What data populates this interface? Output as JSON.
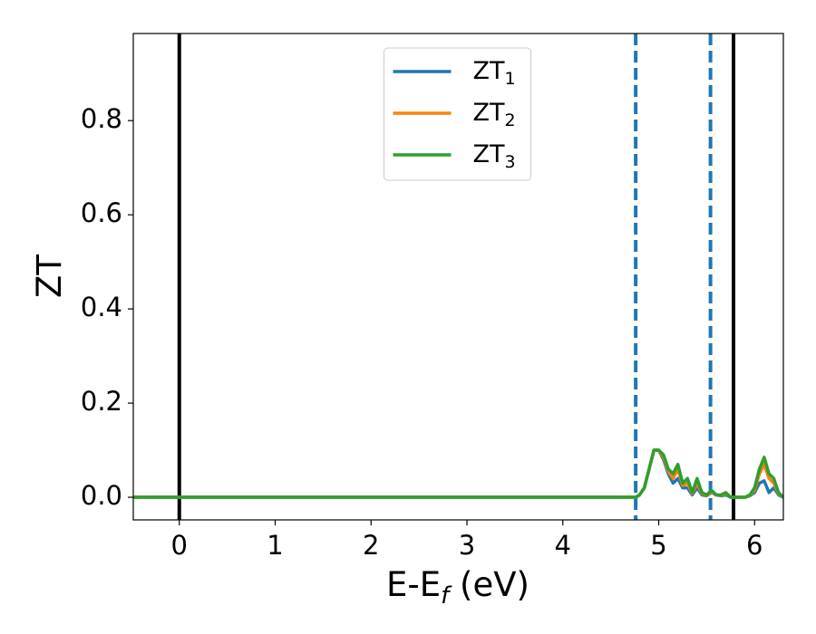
{
  "chart_data": {
    "type": "line",
    "xlabel": "E-E",
    "xlabel_sub": "f",
    "xlabel_suffix": " (eV)",
    "ylabel": "ZT",
    "xlim": [
      -0.48,
      6.3
    ],
    "ylim": [
      -0.048,
      0.985
    ],
    "xticks": [
      0,
      1,
      2,
      3,
      4,
      5,
      6
    ],
    "yticks": [
      {
        "value": 0,
        "label": "0.0"
      },
      0.2,
      0.4,
      0.6,
      0.8
    ],
    "legend": "upper center",
    "vlines": [
      {
        "x": 0,
        "color": "#000000",
        "style": "solid"
      },
      {
        "x": 5.78,
        "color": "#000000",
        "style": "solid"
      },
      {
        "x": 4.76,
        "color": "#1f77b4",
        "style": "dashed"
      },
      {
        "x": 5.54,
        "color": "#1f77b4",
        "style": "dashed"
      }
    ],
    "x": [
      -0.48,
      4.7,
      4.76,
      4.8,
      4.85,
      4.9,
      4.95,
      5.0,
      5.05,
      5.1,
      5.15,
      5.2,
      5.25,
      5.3,
      5.35,
      5.4,
      5.45,
      5.5,
      5.55,
      5.6,
      5.65,
      5.7,
      5.75,
      5.8,
      5.85,
      5.9,
      5.95,
      6.0,
      6.05,
      6.1,
      6.15,
      6.2,
      6.25,
      6.3
    ],
    "series": [
      {
        "name": "ZT",
        "sub": "1",
        "color": "#1f77b4",
        "values": [
          0,
          0,
          0,
          0.005,
          0.02,
          0.06,
          0.1,
          0.1,
          0.08,
          0.05,
          0.03,
          0.04,
          0.02,
          0.02,
          0.005,
          0.02,
          0.005,
          0.003,
          0.01,
          0.005,
          0.003,
          0.005,
          0,
          0,
          0,
          0,
          0.003,
          0.01,
          0.03,
          0.035,
          0.01,
          0.02,
          0.005,
          0
        ]
      },
      {
        "name": "ZT",
        "sub": "2",
        "color": "#ff7f0e",
        "values": [
          0,
          0,
          0,
          0.005,
          0.02,
          0.06,
          0.1,
          0.1,
          0.085,
          0.055,
          0.04,
          0.06,
          0.025,
          0.03,
          0.008,
          0.03,
          0.008,
          0.004,
          0.012,
          0.005,
          0.004,
          0.008,
          0,
          0,
          0,
          0,
          0.004,
          0.015,
          0.05,
          0.07,
          0.04,
          0.03,
          0.008,
          0
        ]
      },
      {
        "name": "ZT",
        "sub": "3",
        "color": "#2ca02c",
        "values": [
          0,
          0,
          0,
          0.005,
          0.02,
          0.06,
          0.1,
          0.1,
          0.09,
          0.06,
          0.05,
          0.07,
          0.03,
          0.04,
          0.01,
          0.04,
          0.01,
          0.005,
          0.015,
          0.005,
          0.005,
          0.01,
          0,
          0,
          0,
          0,
          0.005,
          0.02,
          0.06,
          0.085,
          0.05,
          0.04,
          0.01,
          0
        ]
      }
    ]
  }
}
